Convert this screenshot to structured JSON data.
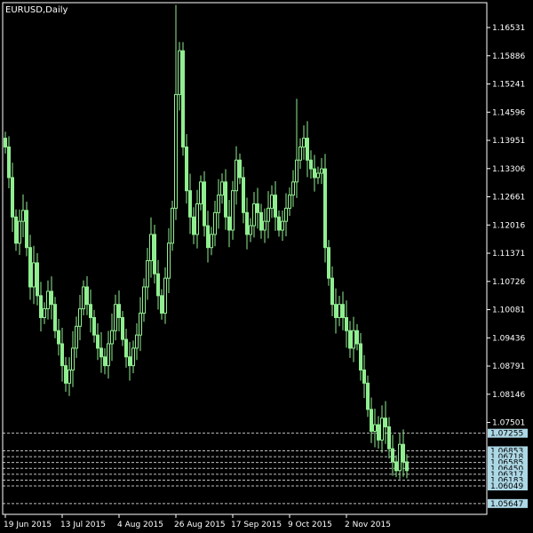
{
  "window": {
    "title": "EURUSD,Daily"
  },
  "colors": {
    "background": "#000000",
    "candle": "#90ee90",
    "axis": "#ffffff",
    "hline": "#c0c0c0",
    "label_bg": "#add8e6"
  },
  "chart_data": {
    "type": "candlestick",
    "symbol": "EURUSD",
    "timeframe": "Daily",
    "ylim": [
      1.054,
      1.171
    ],
    "y_ticks": [
      "1.16531",
      "1.15886",
      "1.15241",
      "1.14596",
      "1.13951",
      "1.13306",
      "1.12661",
      "1.12016",
      "1.11371",
      "1.10726",
      "1.10081",
      "1.09436",
      "1.08791",
      "1.08146",
      "1.07501"
    ],
    "x_ticks": [
      {
        "label": "19 Jun 2015",
        "index": 0
      },
      {
        "label": "13 Jul 2015",
        "index": 16
      },
      {
        "label": "4 Aug 2015",
        "index": 32
      },
      {
        "label": "26 Aug 2015",
        "index": 48
      },
      {
        "label": "17 Sep 2015",
        "index": 64
      },
      {
        "label": "9 Oct 2015",
        "index": 80
      },
      {
        "label": "2 Nov 2015",
        "index": 96
      }
    ],
    "horizontal_levels": [
      {
        "label": "1.07255",
        "value": 1.07255
      },
      {
        "label": "1.06853",
        "value": 1.06853
      },
      {
        "label": "1.06718",
        "value": 1.06718
      },
      {
        "label": "1.06585",
        "value": 1.06585
      },
      {
        "label": "1.06450",
        "value": 1.0645
      },
      {
        "label": "1.06317",
        "value": 1.06317
      },
      {
        "label": "1.06183",
        "value": 1.06183
      },
      {
        "label": "1.06049",
        "value": 1.06049
      },
      {
        "label": "1.05647",
        "value": 1.05647
      }
    ],
    "closes": [
      1.138,
      1.131,
      1.122,
      1.116,
      1.121,
      1.1235,
      1.115,
      1.106,
      1.1115,
      1.104,
      1.099,
      1.101,
      1.105,
      1.102,
      1.096,
      1.093,
      1.088,
      1.084,
      1.087,
      1.092,
      1.097,
      1.101,
      1.106,
      1.102,
      1.099,
      1.095,
      1.092,
      1.09,
      1.088,
      1.093,
      1.096,
      1.102,
      1.099,
      1.094,
      1.09,
      1.088,
      1.092,
      1.095,
      1.1,
      1.106,
      1.112,
      1.118,
      1.109,
      1.104,
      1.1,
      1.108,
      1.116,
      1.124,
      1.15,
      1.16,
      1.138,
      1.128,
      1.122,
      1.118,
      1.125,
      1.13,
      1.12,
      1.115,
      1.118,
      1.123,
      1.127,
      1.13,
      1.122,
      1.119,
      1.128,
      1.135,
      1.131,
      1.123,
      1.118,
      1.12,
      1.125,
      1.123,
      1.119,
      1.121,
      1.124,
      1.127,
      1.122,
      1.119,
      1.121,
      1.124,
      1.127,
      1.13,
      1.135,
      1.138,
      1.14,
      1.135,
      1.133,
      1.131,
      1.132,
      1.133,
      1.115,
      1.108,
      1.102,
      1.099,
      1.102,
      1.099,
      1.096,
      1.092,
      1.096,
      1.093,
      1.087,
      1.084,
      1.078,
      1.073,
      1.0745,
      1.071,
      1.076,
      1.074,
      1.069,
      1.066,
      1.064,
      1.07,
      1.066,
      1.064
    ]
  }
}
